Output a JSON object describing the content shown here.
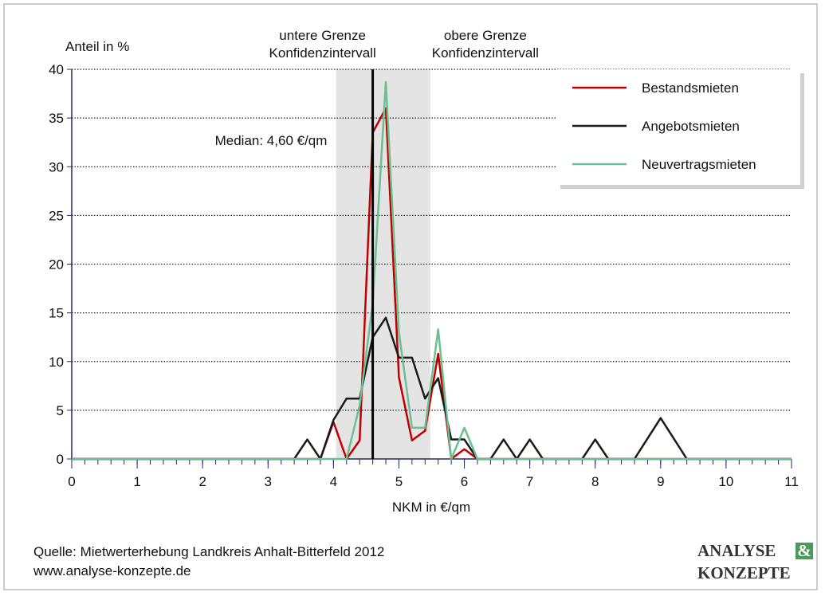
{
  "chart_data": {
    "type": "line",
    "y_label": "Anteil in %",
    "x_label": "NKM in €/qm",
    "x": [
      0,
      0.2,
      0.4,
      0.6,
      0.8,
      1,
      1.2,
      1.4,
      1.6,
      1.8,
      2,
      2.2,
      2.4,
      2.6,
      2.8,
      3,
      3.2,
      3.4,
      3.6,
      3.8,
      4,
      4.2,
      4.4,
      4.6,
      4.8,
      5,
      5.2,
      5.4,
      5.6,
      5.8,
      6,
      6.2,
      6.4,
      6.6,
      6.8,
      7,
      7.2,
      7.4,
      7.6,
      7.8,
      8,
      8.2,
      8.4,
      8.6,
      8.8,
      9,
      9.2,
      9.4,
      9.6,
      9.8,
      10,
      10.2,
      10.4,
      10.6,
      10.8,
      11
    ],
    "series": [
      {
        "name": "Bestandsmieten",
        "color": "#c00000",
        "values": [
          0,
          0,
          0,
          0,
          0,
          0,
          0,
          0,
          0,
          0,
          0,
          0,
          0,
          0,
          0,
          0,
          0,
          0,
          0,
          0,
          3.8,
          0,
          1.9,
          33.5,
          36,
          8.4,
          1.9,
          2.9,
          10.8,
          0,
          1,
          0,
          0,
          0,
          0,
          0,
          0,
          0,
          0,
          0,
          0,
          0,
          0,
          0,
          0,
          0,
          0,
          0,
          0,
          0,
          0,
          0,
          0,
          0,
          0,
          0
        ]
      },
      {
        "name": "Angebotsmieten",
        "color": "#1a1a1a",
        "values": [
          0,
          0,
          0,
          0,
          0,
          0,
          0,
          0,
          0,
          0,
          0,
          0,
          0,
          0,
          0,
          0,
          0,
          0,
          2,
          0,
          4,
          6.2,
          6.2,
          12.5,
          14.5,
          10.4,
          10.4,
          6.2,
          8.3,
          2,
          2,
          0,
          0,
          2,
          0,
          2,
          0,
          0,
          0,
          0,
          2,
          0,
          0,
          0,
          2.1,
          4.2,
          2.1,
          0,
          0,
          0,
          0,
          0,
          0,
          0,
          0,
          0
        ]
      },
      {
        "name": "Neuvertragsmieten",
        "color": "#6cbf94",
        "values": [
          0,
          0,
          0,
          0,
          0,
          0,
          0,
          0,
          0,
          0,
          0,
          0,
          0,
          0,
          0,
          0,
          0,
          0,
          0,
          0,
          0,
          0,
          5.5,
          16,
          38.7,
          13,
          3.2,
          3.2,
          13.3,
          0,
          3.2,
          0,
          0,
          0,
          0,
          0,
          0,
          0,
          0,
          0,
          0,
          0,
          0,
          0,
          0,
          0,
          0,
          0,
          0,
          0,
          0,
          0,
          0,
          0,
          0,
          0
        ]
      }
    ],
    "xlim": [
      0,
      11
    ],
    "xticks": [
      0,
      1,
      2,
      3,
      4,
      5,
      6,
      7,
      8,
      9,
      10,
      11
    ],
    "ylim": [
      0,
      40
    ],
    "yticks": [
      0,
      5,
      10,
      15,
      20,
      25,
      30,
      35,
      40
    ],
    "grid": true,
    "legend": "upper right",
    "median": {
      "value": 4.6,
      "label": "Median: 4,60 €/qm"
    },
    "interval": {
      "lower": 4.04,
      "upper": 5.48,
      "lower_label": [
        "untere Grenze",
        "Konfidenzintervall"
      ],
      "upper_label": [
        "obere Grenze",
        "Konfidenzintervall"
      ]
    },
    "source": [
      "Quelle: Mietwerterhebung Landkreis Anhalt-Bitterfeld 2012",
      "www.analyse-konzepte.de"
    ],
    "logo": [
      "ANALYSE",
      "&",
      "KONZEPTE"
    ]
  }
}
